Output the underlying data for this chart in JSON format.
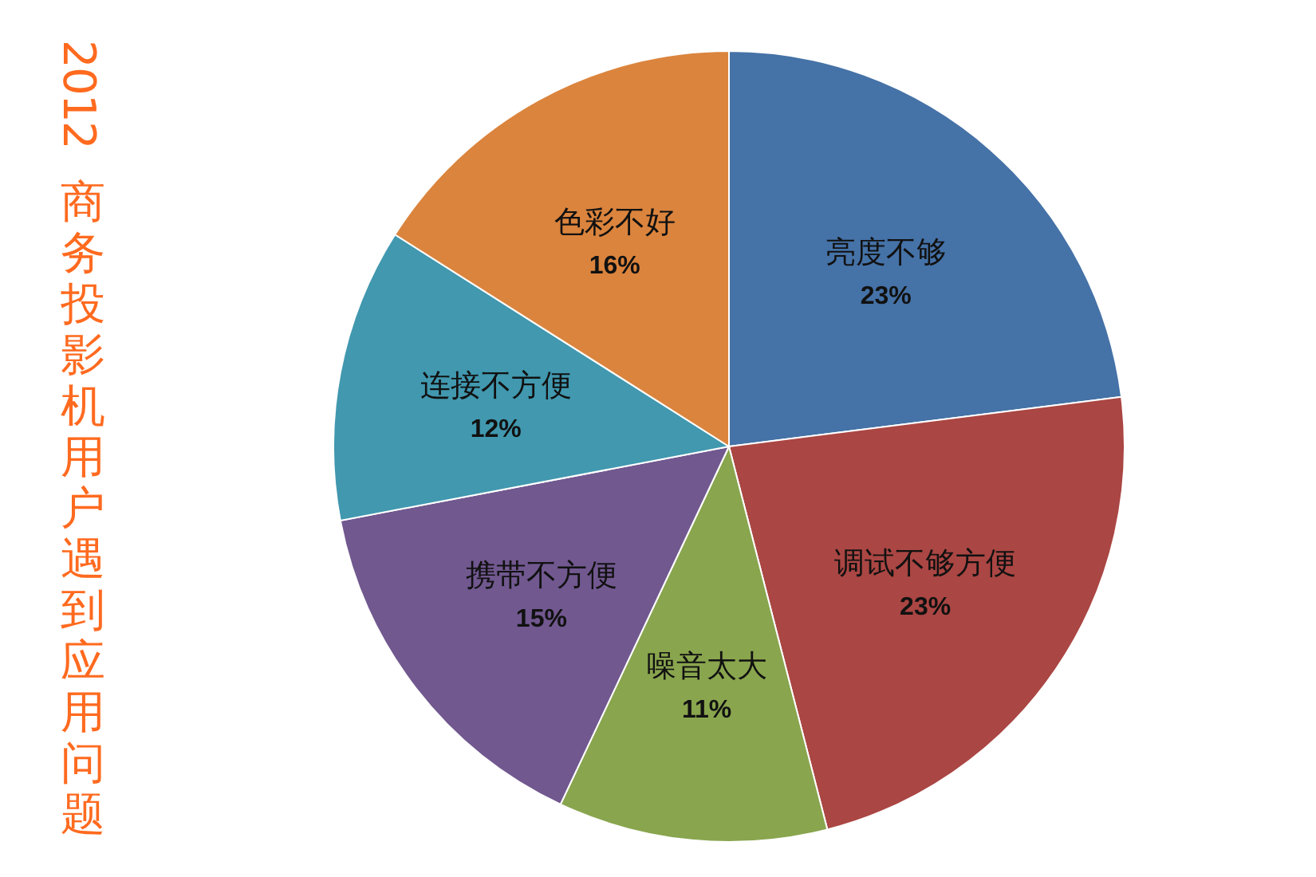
{
  "chart_data": {
    "type": "pie",
    "title": "2012 商务投影机用户遇到应用问题",
    "categories": [
      "亮度不够",
      "调试不够方便",
      "噪音太大",
      "携带不方便",
      "连接不方便",
      "色彩不好"
    ],
    "values": [
      23,
      23,
      11,
      15,
      12,
      16
    ],
    "value_labels": [
      "23%",
      "23%",
      "11%",
      "15%",
      "12%",
      "16%"
    ],
    "colors": [
      "#4572a7",
      "#aa4643",
      "#89a54e",
      "#71588f",
      "#4198af",
      "#db843d"
    ]
  }
}
